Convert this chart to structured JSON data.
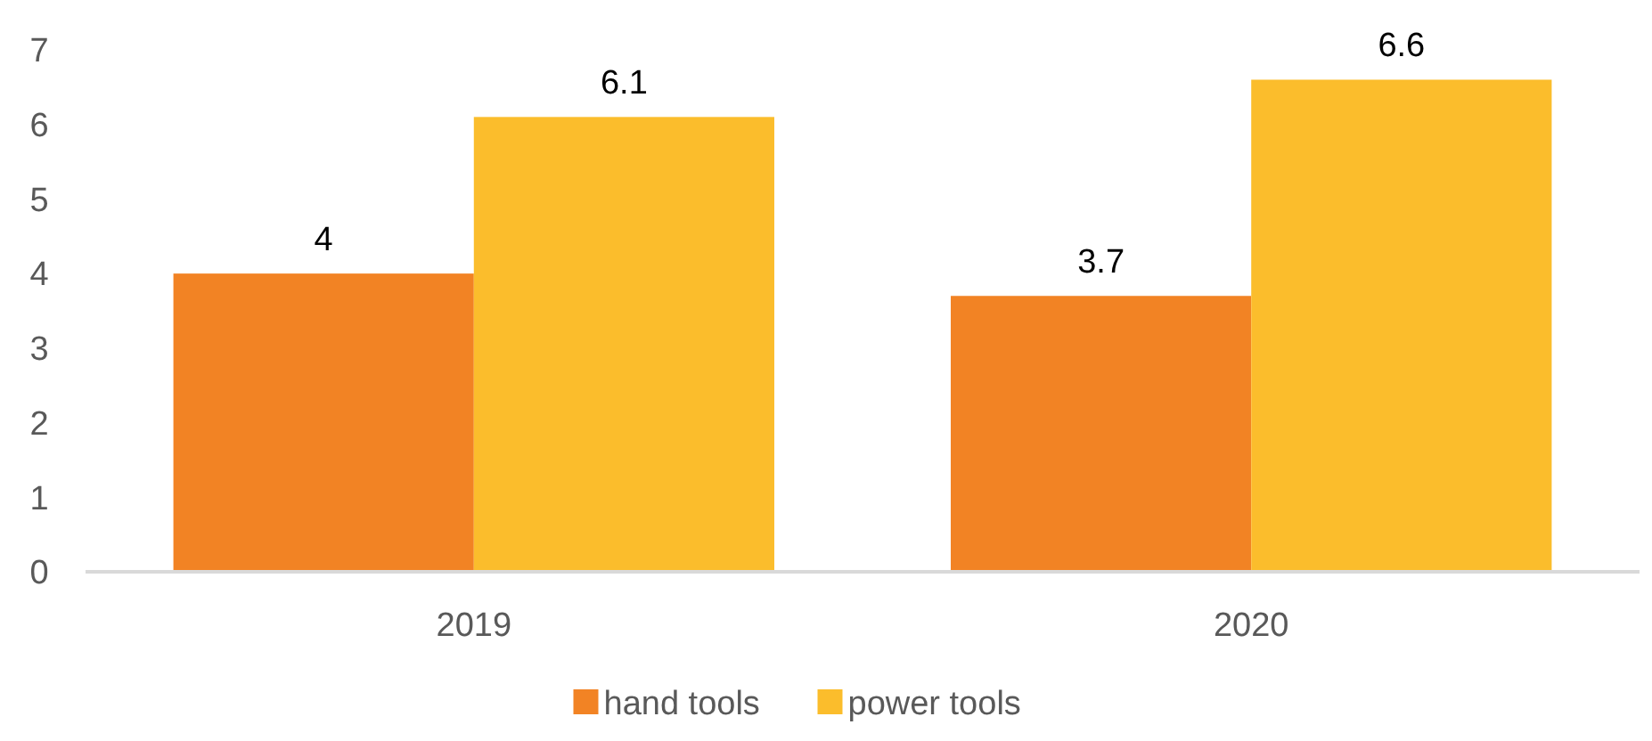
{
  "chart_data": {
    "type": "bar",
    "categories": [
      "2019",
      "2020"
    ],
    "series": [
      {
        "name": "hand tools",
        "color": "#f28324",
        "values": [
          4,
          3.7
        ]
      },
      {
        "name": "power tools",
        "color": "#fbbd2c",
        "values": [
          6.1,
          6.6
        ]
      }
    ],
    "ylim": [
      0,
      7
    ],
    "yticks": [
      0,
      1,
      2,
      3,
      4,
      5,
      6,
      7
    ],
    "grid": false,
    "legend": "bottom",
    "data_labels": true
  }
}
